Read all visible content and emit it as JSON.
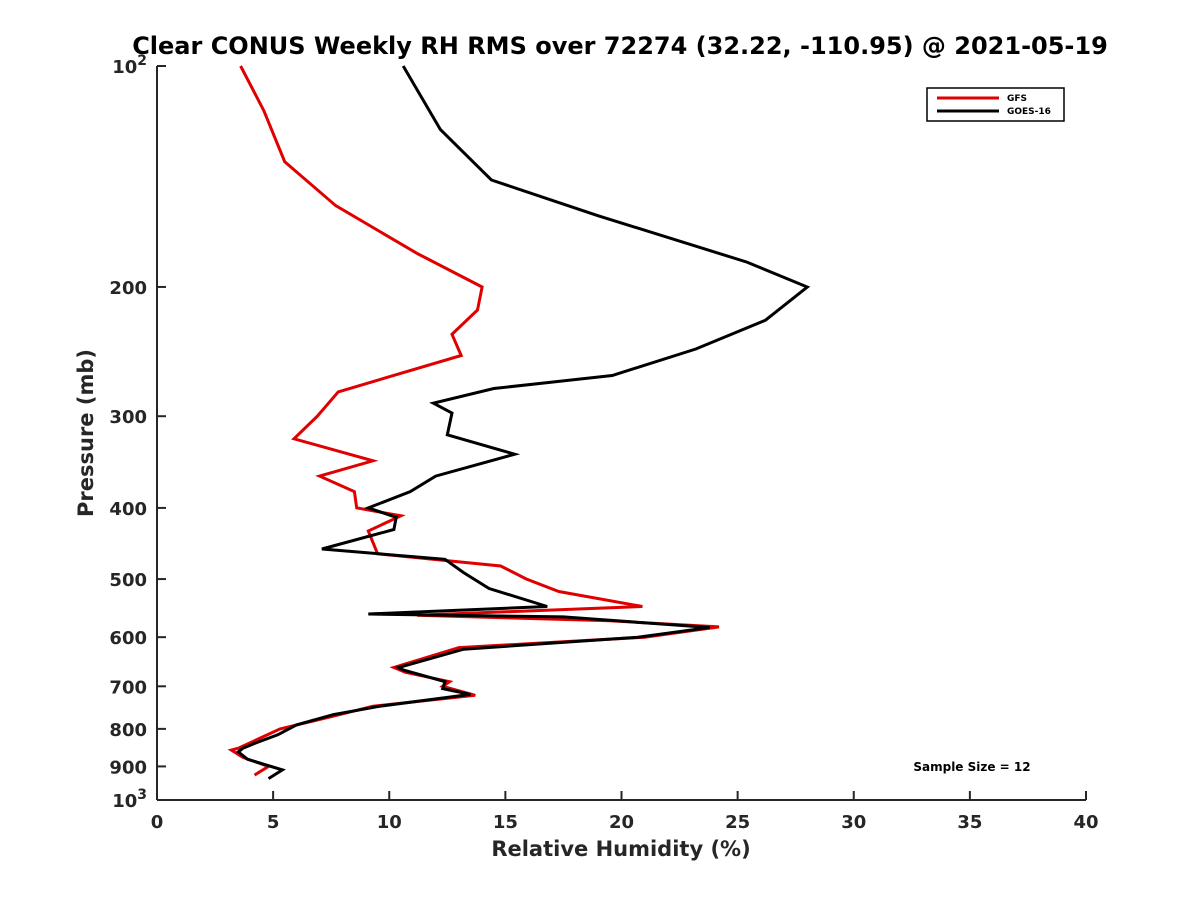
{
  "chart_data": {
    "type": "line",
    "title": "Clear CONUS Weekly RH RMS over 72274 (32.22, -110.95) @ 2021-05-19",
    "xlabel": "Relative Humidity (%)",
    "ylabel": "Pressure (mb)",
    "xlim": [
      0,
      40
    ],
    "ylim": [
      100,
      1000
    ],
    "y_scale": "log",
    "y_reversed": true,
    "x_ticks": [
      "0",
      "5",
      "10",
      "15",
      "20",
      "25",
      "30",
      "35",
      "40"
    ],
    "x_tick_values": [
      0,
      5,
      10,
      15,
      20,
      25,
      30,
      35,
      40
    ],
    "y_ticks": [
      {
        "value": 100,
        "base": "10",
        "exp": "2"
      },
      {
        "value": 200,
        "label": "200"
      },
      {
        "value": 300,
        "label": "300"
      },
      {
        "value": 400,
        "label": "400"
      },
      {
        "value": 500,
        "label": "500"
      },
      {
        "value": 600,
        "label": "600"
      },
      {
        "value": 700,
        "label": "700"
      },
      {
        "value": 800,
        "label": "800"
      },
      {
        "value": 900,
        "label": "900"
      },
      {
        "value": 1000,
        "base": "10",
        "exp": "3"
      }
    ],
    "grid": false,
    "legend_position": "top-right",
    "annotation": "Sample Size = 12",
    "series": [
      {
        "name": "GFS",
        "color": "#e00000",
        "points": [
          [
            3.6,
            100
          ],
          [
            4.6,
            115
          ],
          [
            5.5,
            135
          ],
          [
            7.7,
            155
          ],
          [
            11.2,
            180
          ],
          [
            14.0,
            200
          ],
          [
            13.8,
            215
          ],
          [
            12.7,
            232
          ],
          [
            13.1,
            248
          ],
          [
            7.8,
            278
          ],
          [
            6.9,
            300
          ],
          [
            5.9,
            322
          ],
          [
            9.3,
            345
          ],
          [
            7.0,
            362
          ],
          [
            8.5,
            380
          ],
          [
            8.6,
            400
          ],
          [
            10.5,
            410
          ],
          [
            9.1,
            430
          ],
          [
            9.5,
            462
          ],
          [
            14.8,
            480
          ],
          [
            15.9,
            500
          ],
          [
            17.3,
            520
          ],
          [
            20.9,
            545
          ],
          [
            11.2,
            560
          ],
          [
            19.5,
            570
          ],
          [
            24.2,
            581
          ],
          [
            21.0,
            600
          ],
          [
            13.0,
            620
          ],
          [
            10.2,
            660
          ],
          [
            10.7,
            670
          ],
          [
            12.6,
            690
          ],
          [
            12.3,
            700
          ],
          [
            13.7,
            720
          ],
          [
            9.3,
            745
          ],
          [
            7.5,
            770
          ],
          [
            5.3,
            800
          ],
          [
            3.5,
            850
          ],
          [
            3.2,
            855
          ],
          [
            3.7,
            875
          ],
          [
            4.8,
            900
          ],
          [
            4.2,
            925
          ]
        ]
      },
      {
        "name": "GOES-16",
        "color": "#000000",
        "points": [
          [
            10.6,
            100
          ],
          [
            12.2,
            122
          ],
          [
            14.4,
            143
          ],
          [
            19.0,
            160
          ],
          [
            25.4,
            185
          ],
          [
            28.0,
            200
          ],
          [
            26.2,
            222
          ],
          [
            23.2,
            243
          ],
          [
            19.6,
            264
          ],
          [
            14.5,
            275
          ],
          [
            11.9,
            288
          ],
          [
            12.7,
            297
          ],
          [
            12.5,
            318
          ],
          [
            15.4,
            338
          ],
          [
            12.0,
            362
          ],
          [
            10.9,
            380
          ],
          [
            9.1,
            400
          ],
          [
            10.3,
            412
          ],
          [
            10.2,
            428
          ],
          [
            7.1,
            455
          ],
          [
            12.4,
            470
          ],
          [
            13.2,
            490
          ],
          [
            14.3,
            515
          ],
          [
            16.8,
            545
          ],
          [
            9.1,
            558
          ],
          [
            17.5,
            563
          ],
          [
            23.8,
            582
          ],
          [
            20.7,
            600
          ],
          [
            13.2,
            623
          ],
          [
            10.4,
            660
          ],
          [
            10.6,
            665
          ],
          [
            12.4,
            690
          ],
          [
            12.3,
            705
          ],
          [
            13.5,
            718
          ],
          [
            9.6,
            745
          ],
          [
            7.6,
            765
          ],
          [
            6.0,
            790
          ],
          [
            5.2,
            815
          ],
          [
            4.3,
            835
          ],
          [
            3.7,
            850
          ],
          [
            3.5,
            860
          ],
          [
            3.9,
            880
          ],
          [
            5.4,
            910
          ],
          [
            4.8,
            935
          ]
        ]
      }
    ]
  }
}
